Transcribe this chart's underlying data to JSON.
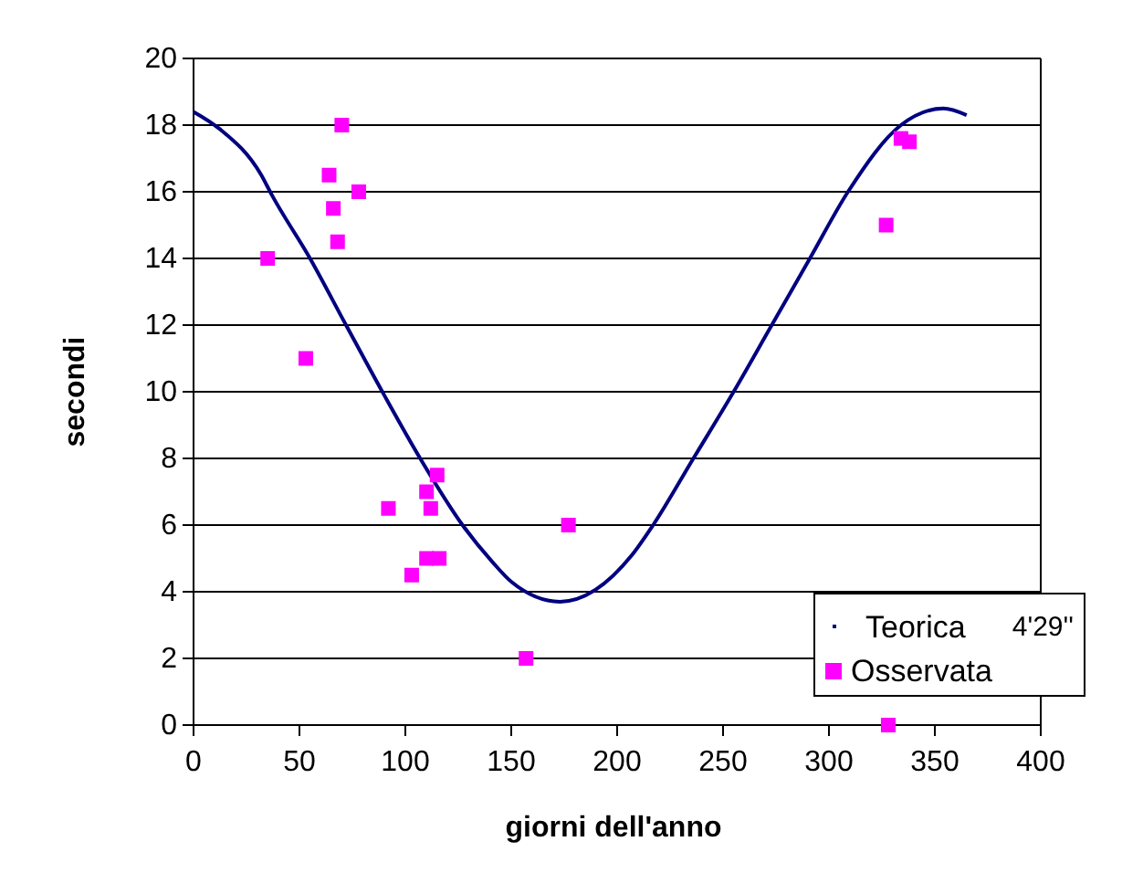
{
  "chart_data": {
    "type": "scatter",
    "xlabel": "giorni dell'anno",
    "ylabel": "secondi",
    "xlim": [
      0,
      400
    ],
    "xticks": [
      0,
      50,
      100,
      150,
      200,
      250,
      300,
      350,
      400
    ],
    "ylim": [
      0,
      20
    ],
    "yticks": [
      0,
      2,
      4,
      6,
      8,
      10,
      12,
      14,
      16,
      18,
      20
    ],
    "grid": "y",
    "legend": "bottom right",
    "annotations": [
      "4'29''"
    ],
    "series": [
      {
        "name": "Teorica",
        "type": "line",
        "color": "#000080",
        "marker": "none",
        "x": [
          0,
          12,
          32,
          37,
          55,
          72,
          90,
          107,
          127,
          141,
          150,
          173,
          207,
          217,
          236,
          255,
          273,
          291,
          309,
          334,
          354,
          365
        ],
        "values": [
          18.4,
          17.9,
          16.5,
          15.9,
          14.0,
          12.0,
          9.9,
          8.0,
          6.0,
          4.9,
          4.3,
          3.7,
          5.1,
          6.0,
          8.0,
          10.0,
          12.0,
          14.0,
          16.0,
          18.0,
          18.5,
          18.3
        ]
      },
      {
        "name": "Osservata",
        "color": "#ff00ff",
        "marker": "square",
        "x": [
          35,
          53,
          64,
          66,
          68,
          70,
          78,
          92,
          103,
          110,
          112,
          115,
          110,
          116,
          157,
          177,
          327,
          334,
          338,
          328
        ],
        "values": [
          14,
          11,
          16.5,
          15.5,
          14.5,
          18,
          16,
          6.5,
          4.5,
          7,
          6.5,
          7.5,
          5,
          5,
          2,
          6,
          15,
          17.6,
          17.5,
          0
        ]
      }
    ]
  }
}
